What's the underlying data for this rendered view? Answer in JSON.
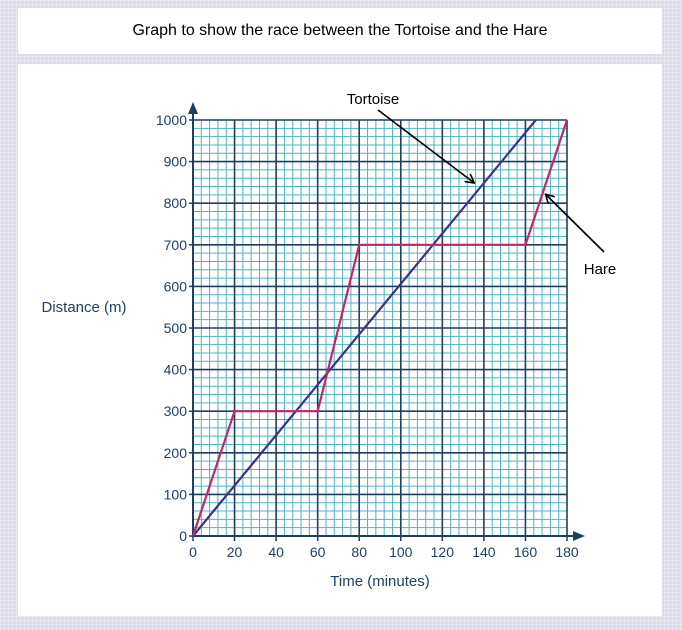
{
  "title": "Graph to show the race between the Tortoise and the Hare",
  "chart_data": {
    "type": "line",
    "title": "Graph to show the race between the Tortoise and the Hare",
    "xlabel": "Time (minutes)",
    "ylabel": "Distance (m)",
    "xlim": [
      0,
      180
    ],
    "ylim": [
      0,
      1000
    ],
    "x_ticks": [
      "0",
      "20",
      "40",
      "60",
      "80",
      "100",
      "120",
      "140",
      "160",
      "180"
    ],
    "y_ticks": [
      "0",
      "100",
      "200",
      "300",
      "400",
      "500",
      "600",
      "700",
      "800",
      "900",
      "1000"
    ],
    "grid": true,
    "series": [
      {
        "name": "Tortoise",
        "color": "#3b3580",
        "points": [
          [
            0,
            0
          ],
          [
            165,
            1000
          ]
        ]
      },
      {
        "name": "Hare",
        "color": "#c0266a",
        "points": [
          [
            0,
            0
          ],
          [
            20,
            300
          ],
          [
            60,
            300
          ],
          [
            80,
            700
          ],
          [
            160,
            700
          ],
          [
            180,
            1000
          ]
        ]
      }
    ],
    "annotations": [
      {
        "text": "Tortoise",
        "target": [
          135,
          850
        ]
      },
      {
        "text": "Hare",
        "target": [
          170,
          820
        ]
      }
    ]
  }
}
